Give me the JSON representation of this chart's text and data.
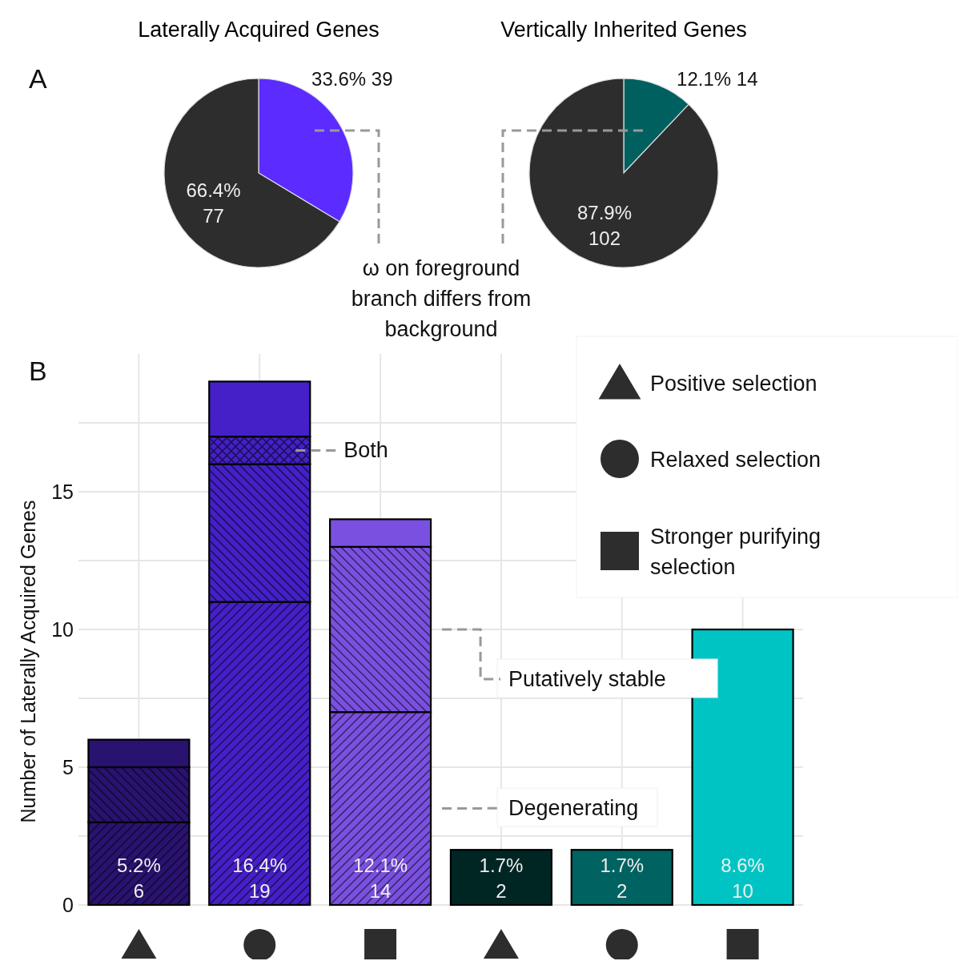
{
  "chart_data": [
    {
      "type": "pie",
      "title": "Laterally Acquired Genes",
      "categories": [
        null,
        null
      ],
      "values": [
        39,
        77
      ],
      "colors": [
        "#5b2bff",
        "#2d2d2d"
      ],
      "value_labels": [
        "33.6% 39",
        "66.4% 77"
      ],
      "annotations": [
        "A",
        "ω on foreground branch differs from background"
      ]
    },
    {
      "type": "pie",
      "title": "Vertically Inherited Genes",
      "categories": [
        null,
        null
      ],
      "values": [
        14,
        102
      ],
      "colors": [
        "#006060",
        "#2d2d2d"
      ],
      "value_labels": [
        "12.1% 14",
        "87.9% 102"
      ]
    },
    {
      "type": "bar",
      "stacked": true,
      "categories": [
        null,
        null,
        null,
        null,
        null,
        null
      ],
      "ylabel": "Number of Laterally Acquired Genes",
      "ylim": [
        0,
        20
      ],
      "yticks": [
        0,
        {
          "value": 2.5,
          "label": null
        },
        5,
        {
          "value": 7.5,
          "label": null
        },
        10,
        {
          "value": 12.5,
          "label": null
        },
        15,
        {
          "value": 17.5,
          "label": null
        }
      ],
      "grid": true,
      "annotations": [
        "B",
        "Positive selection",
        "Relaxed selection",
        "Stronger purifying selection"
      ],
      "totals": [
        "5.2% 6",
        "16.4% 19",
        "12.1% 14",
        "1.7% 2",
        "1.7% 2",
        "8.6% 10"
      ],
      "series": [
        {
          "name": "Degenerating",
          "values": [
            3,
            11,
            7,
            null,
            null,
            null
          ],
          "colors": [
            "#2a1270",
            "#4520c8",
            "#7a50e0",
            null,
            null,
            null
          ]
        },
        {
          "name": "Putatively stable",
          "values": [
            2,
            5,
            6,
            null,
            null,
            null
          ],
          "colors": [
            "#2a1270",
            "#4520c8",
            "#7a50e0",
            null,
            null,
            null
          ]
        },
        {
          "name": "Both",
          "values": [
            null,
            1,
            null,
            null,
            null,
            null
          ],
          "colors": [
            null,
            "#4520c8",
            null,
            null,
            null,
            null
          ]
        },
        {
          "values": [
            1,
            2,
            1,
            2,
            2,
            10
          ],
          "colors": [
            "#2a1270",
            "#4520c8",
            "#7a50e0",
            "#002624",
            "#006361",
            "#00c4c4"
          ]
        }
      ]
    }
  ]
}
